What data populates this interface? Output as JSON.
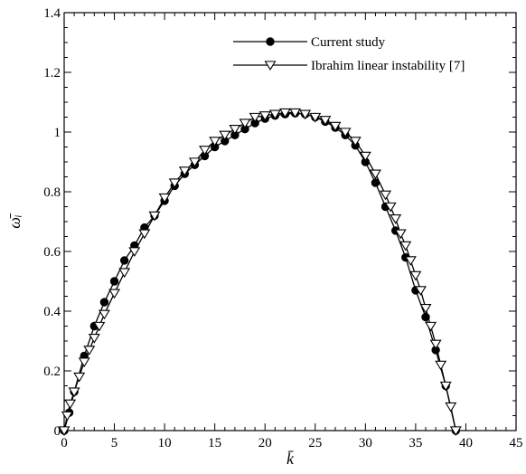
{
  "chart_data": {
    "type": "line",
    "xlabel": "k̄",
    "ylabel": "ω̄ᵢ",
    "xlim": [
      0,
      45
    ],
    "ylim": [
      0,
      1.4
    ],
    "x_ticks": [
      "0",
      "5",
      "10",
      "15",
      "20",
      "25",
      "30",
      "35",
      "40",
      "45"
    ],
    "y_ticks": [
      "0",
      "0.2",
      "0.4",
      "0.6",
      "0.8",
      "1",
      "1.2",
      "1.4"
    ],
    "legend_position": "top-right",
    "grid": false,
    "series": [
      {
        "name": "Current study",
        "marker": "filled-circle",
        "color": "#000000",
        "points": [
          [
            0,
            0
          ],
          [
            0.5,
            0.06
          ],
          [
            1,
            0.13
          ],
          [
            2,
            0.25
          ],
          [
            3,
            0.35
          ],
          [
            4,
            0.43
          ],
          [
            5,
            0.5
          ],
          [
            6,
            0.57
          ],
          [
            7,
            0.62
          ],
          [
            8,
            0.68
          ],
          [
            9,
            0.72
          ],
          [
            10,
            0.77
          ],
          [
            11,
            0.82
          ],
          [
            12,
            0.86
          ],
          [
            13,
            0.89
          ],
          [
            14,
            0.92
          ],
          [
            15,
            0.95
          ],
          [
            16,
            0.97
          ],
          [
            17,
            0.99
          ],
          [
            18,
            1.01
          ],
          [
            19,
            1.03
          ],
          [
            20,
            1.045
          ],
          [
            21,
            1.055
          ],
          [
            22,
            1.06
          ],
          [
            23,
            1.063
          ],
          [
            24,
            1.06
          ],
          [
            25,
            1.05
          ],
          [
            26,
            1.035
          ],
          [
            27,
            1.015
          ],
          [
            28,
            0.99
          ],
          [
            29,
            0.955
          ],
          [
            30,
            0.9
          ],
          [
            31,
            0.83
          ],
          [
            32,
            0.75
          ],
          [
            33,
            0.67
          ],
          [
            34,
            0.58
          ],
          [
            35,
            0.47
          ],
          [
            36,
            0.38
          ],
          [
            37,
            0.27
          ],
          [
            38,
            0.15
          ],
          [
            39,
            0
          ]
        ]
      },
      {
        "name": "Ibrahim linear instability [7]",
        "marker": "open-triangle-down",
        "color": "#000000",
        "points": [
          [
            0,
            0
          ],
          [
            0.3,
            0.05
          ],
          [
            0.6,
            0.09
          ],
          [
            1,
            0.13
          ],
          [
            1.5,
            0.18
          ],
          [
            2,
            0.23
          ],
          [
            2.5,
            0.27
          ],
          [
            3,
            0.31
          ],
          [
            3.5,
            0.35
          ],
          [
            4,
            0.39
          ],
          [
            5,
            0.46
          ],
          [
            6,
            0.53
          ],
          [
            7,
            0.6
          ],
          [
            8,
            0.66
          ],
          [
            9,
            0.72
          ],
          [
            10,
            0.78
          ],
          [
            11,
            0.83
          ],
          [
            12,
            0.87
          ],
          [
            13,
            0.9
          ],
          [
            14,
            0.94
          ],
          [
            15,
            0.97
          ],
          [
            16,
            0.99
          ],
          [
            17,
            1.01
          ],
          [
            18,
            1.03
          ],
          [
            19,
            1.05
          ],
          [
            20,
            1.055
          ],
          [
            21,
            1.06
          ],
          [
            22,
            1.065
          ],
          [
            23,
            1.065
          ],
          [
            24,
            1.06
          ],
          [
            25,
            1.05
          ],
          [
            26,
            1.04
          ],
          [
            27,
            1.02
          ],
          [
            28,
            1.0
          ],
          [
            29,
            0.97
          ],
          [
            30,
            0.92
          ],
          [
            31,
            0.86
          ],
          [
            32,
            0.79
          ],
          [
            32.5,
            0.75
          ],
          [
            33,
            0.71
          ],
          [
            33.5,
            0.66
          ],
          [
            34,
            0.62
          ],
          [
            34.5,
            0.57
          ],
          [
            35,
            0.52
          ],
          [
            35.5,
            0.47
          ],
          [
            36,
            0.41
          ],
          [
            36.5,
            0.35
          ],
          [
            37,
            0.29
          ],
          [
            37.5,
            0.22
          ],
          [
            38,
            0.15
          ],
          [
            38.5,
            0.08
          ],
          [
            39,
            0
          ]
        ]
      }
    ]
  }
}
